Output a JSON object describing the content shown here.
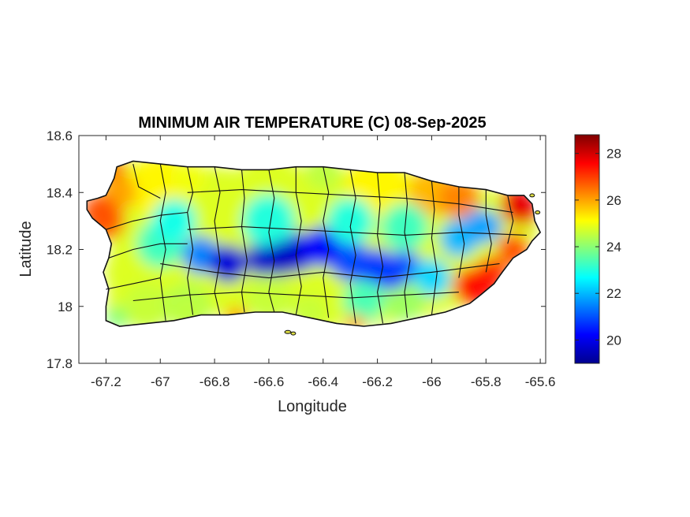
{
  "chart_data": {
    "type": "heatmap",
    "title": "MINIMUM AIR TEMPERATURE (C) 08-Sep-2025",
    "xlabel": "Longitude",
    "ylabel": "Latitude",
    "xlim": [
      -67.3,
      -65.58
    ],
    "ylim": [
      17.8,
      18.6
    ],
    "x_ticks": [
      -67.2,
      -67,
      -66.8,
      -66.6,
      -66.4,
      -66.2,
      -66,
      -65.8,
      -65.6
    ],
    "x_tick_labels": [
      "-67.2",
      "-67",
      "-66.8",
      "-66.6",
      "-66.4",
      "-66.2",
      "-66",
      "-65.8",
      "-65.6"
    ],
    "y_ticks": [
      17.8,
      18,
      18.2,
      18.4,
      18.6
    ],
    "y_tick_labels": [
      "17.8",
      "18",
      "18.2",
      "18.4",
      "18.6"
    ],
    "colorbar": {
      "colormap": "jet",
      "range": [
        19,
        28.8
      ],
      "ticks": [
        20,
        22,
        24,
        26,
        28
      ],
      "tick_labels": [
        "20",
        "22",
        "24",
        "26",
        "28"
      ]
    },
    "grid": false,
    "field_description_points": [
      {
        "lon": -66.75,
        "lat": 18.15,
        "value": 19.8
      },
      {
        "lon": -66.55,
        "lat": 18.17,
        "value": 19.6
      },
      {
        "lon": -66.4,
        "lat": 18.2,
        "value": 20.2
      },
      {
        "lon": -66.15,
        "lat": 18.12,
        "value": 20.8
      },
      {
        "lon": -65.82,
        "lat": 18.28,
        "value": 21.8
      },
      {
        "lon": -67.22,
        "lat": 18.33,
        "value": 26.8
      },
      {
        "lon": -65.68,
        "lat": 18.35,
        "value": 27.8
      },
      {
        "lon": -65.82,
        "lat": 18.08,
        "value": 27.5
      },
      {
        "lon": -66.9,
        "lat": 18.45,
        "value": 25.0
      },
      {
        "lon": -66.4,
        "lat": 18.47,
        "value": 24.5
      },
      {
        "lon": -66.9,
        "lat": 17.98,
        "value": 24.5
      },
      {
        "lon": -66.45,
        "lat": 17.98,
        "value": 24.6
      }
    ]
  }
}
